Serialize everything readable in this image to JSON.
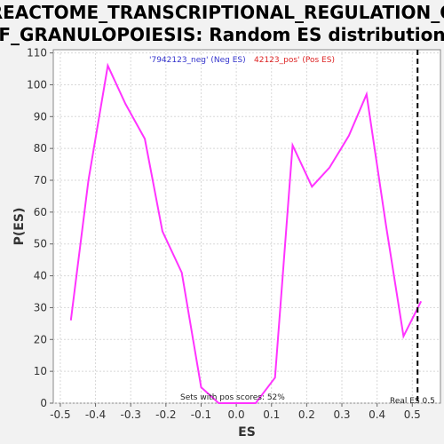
{
  "chart_data": {
    "type": "line",
    "title_lines": [
      "REACTOME_TRANSCRIPTIONAL_REGULATION_O",
      "F_GRANULOPOIESIS: Random ES distribution"
    ],
    "xlabel": "ES",
    "ylabel": "P(ES)",
    "xlim": [
      -0.52,
      0.58
    ],
    "ylim": [
      0,
      111
    ],
    "x_ticks": [
      "-0.5",
      "-0.4",
      "-0.3",
      "-0.2",
      "-0.1",
      "0.0",
      "0.1",
      "0.2",
      "0.3",
      "0.4",
      "0.5"
    ],
    "x_tick_values": [
      -0.5,
      -0.4,
      -0.3,
      -0.2,
      -0.1,
      0.0,
      0.1,
      0.2,
      0.3,
      0.4,
      0.5
    ],
    "y_ticks": [
      "0",
      "10",
      "20",
      "30",
      "40",
      "50",
      "60",
      "70",
      "80",
      "90",
      "100",
      "110"
    ],
    "y_tick_values": [
      0,
      10,
      20,
      30,
      40,
      50,
      60,
      70,
      80,
      90,
      100,
      110
    ],
    "grid": true,
    "legend_neg": "'7942123_neg' (Neg ES)",
    "legend_pos": "42123_pos' (Pos ES)",
    "legend_neg_color": "#3333cc",
    "legend_pos_color": "#dd2222",
    "series_color": "#ff33ff",
    "x": [
      -0.47,
      -0.42,
      -0.365,
      -0.315,
      -0.26,
      -0.21,
      -0.155,
      -0.1,
      -0.05,
      0.0,
      0.055,
      0.11,
      0.16,
      0.215,
      0.265,
      0.32,
      0.37,
      0.425,
      0.475,
      0.525
    ],
    "y": [
      26,
      70,
      106,
      94,
      83,
      54,
      41,
      5,
      0,
      0,
      0,
      8,
      81,
      68,
      74,
      84,
      97,
      56,
      21,
      32
    ],
    "real_es_value": 0.515,
    "pos_scores_note": "Sets with pos scores: 52%",
    "real_es_label": "Real ES 0.5"
  }
}
